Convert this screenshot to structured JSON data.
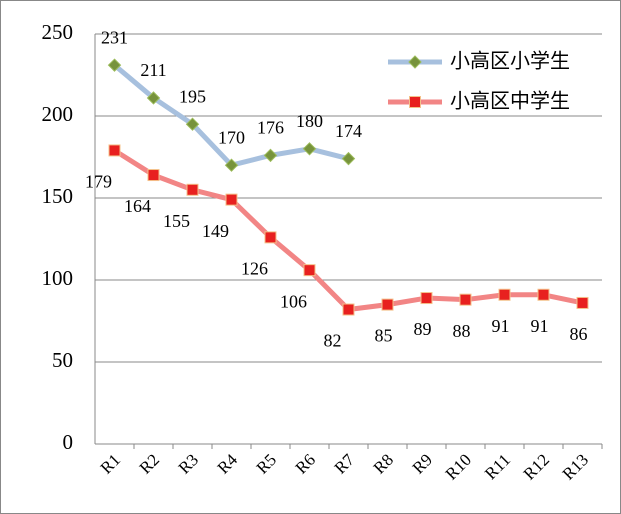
{
  "chart_data": {
    "type": "line",
    "categories": [
      "R1",
      "R2",
      "R3",
      "R4",
      "R5",
      "R6",
      "R7",
      "R8",
      "R9",
      "R10",
      "R11",
      "R12",
      "R13"
    ],
    "series": [
      {
        "name": "小高区小学生",
        "color": "#a7c0de",
        "marker_color": "#77933c",
        "marker": "diamond",
        "values": [
          231,
          211,
          195,
          170,
          176,
          180,
          174,
          null,
          null,
          null,
          null,
          null,
          null
        ]
      },
      {
        "name": "小高区中学生",
        "color": "#f28585",
        "marker_color": "#e8201f",
        "marker": "square",
        "values": [
          179,
          164,
          155,
          149,
          126,
          106,
          82,
          85,
          89,
          88,
          91,
          91,
          86
        ]
      }
    ],
    "ylim": [
      0,
      250
    ],
    "yticks": [
      0,
      50,
      100,
      150,
      200,
      250
    ],
    "grid": true,
    "legend": "top-right"
  }
}
